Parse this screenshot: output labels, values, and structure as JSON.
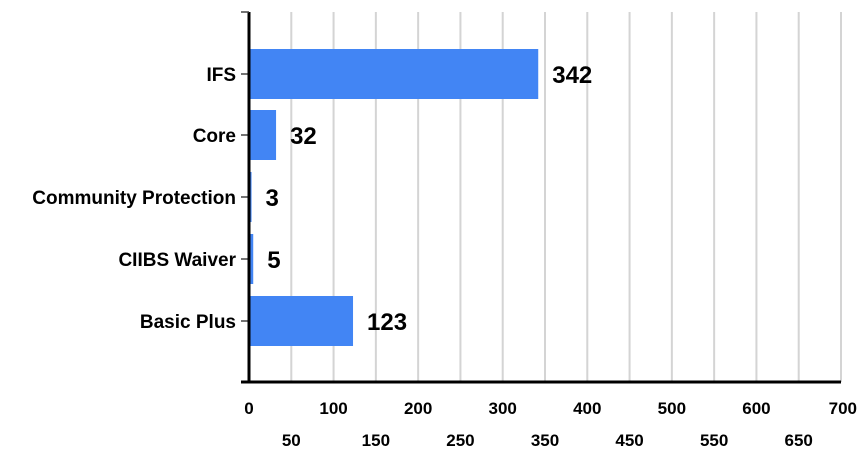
{
  "chart_data": {
    "type": "bar",
    "orientation": "horizontal",
    "categories": [
      "IFS",
      "Core",
      "Community Protection",
      "CIIBS Waiver",
      "Basic Plus"
    ],
    "values": [
      342,
      32,
      3,
      5,
      123
    ],
    "xlim": [
      0,
      700
    ],
    "x_ticks": [
      0,
      50,
      100,
      150,
      200,
      250,
      300,
      350,
      400,
      450,
      500,
      550,
      600,
      650,
      700
    ],
    "grid": "vertical",
    "legend": "none",
    "bar_color": "#4285f4",
    "title": "",
    "xlabel": "",
    "ylabel": ""
  }
}
